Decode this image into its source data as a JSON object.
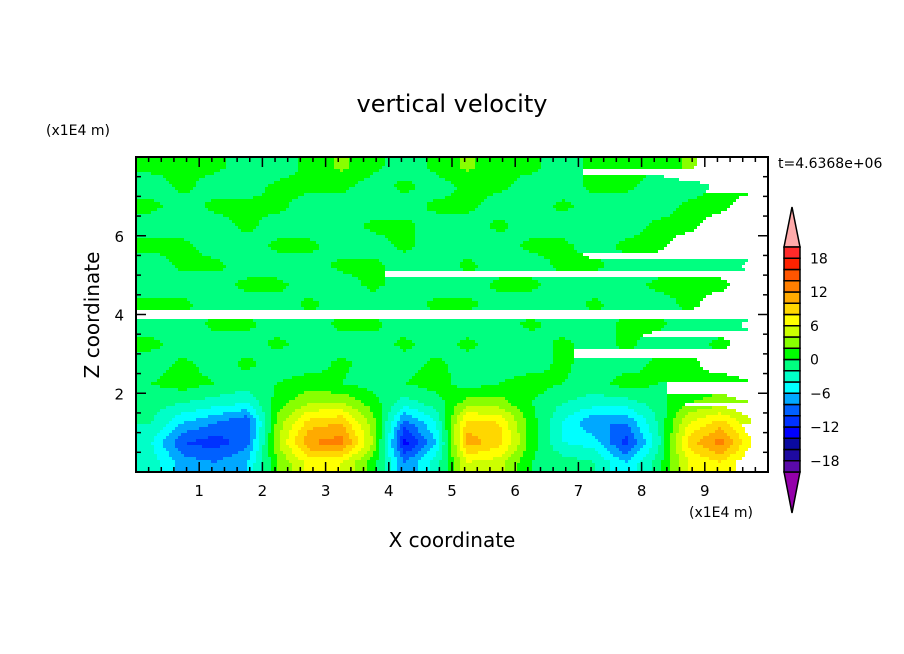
{
  "chart_data": {
    "type": "heatmap",
    "title": "vertical velocity",
    "xlabel": "X coordinate",
    "ylabel": "Z coordinate",
    "x_unit": "(x1E4 m)",
    "y_unit": "(x1E4 m)",
    "time_label": "t=4.6368e+06",
    "xlim": [
      0,
      10
    ],
    "ylim": [
      0,
      8
    ],
    "x_ticks": [
      1,
      2,
      3,
      4,
      5,
      6,
      7,
      8,
      9
    ],
    "y_ticks": [
      2,
      4,
      6
    ],
    "grid": false,
    "colorbar": {
      "levels": [
        -20,
        -18,
        -16,
        -14,
        -12,
        -10,
        -8,
        -6,
        -4,
        -2,
        0,
        2,
        4,
        6,
        8,
        10,
        12,
        14,
        16,
        18,
        20
      ],
      "tick_labels": [
        "-18",
        "-12",
        "-6",
        "0",
        "6",
        "12",
        "18"
      ],
      "tick_values": [
        -18,
        -12,
        -6,
        0,
        6,
        12,
        18
      ],
      "colors": [
        "#5a0aa8",
        "#1e0aa0",
        "#0a0aa0",
        "#0000ff",
        "#0032ff",
        "#0060ff",
        "#00a8ff",
        "#00ffff",
        "#00ffc8",
        "#00ff80",
        "#00ff00",
        "#88ff00",
        "#ccff00",
        "#ffff00",
        "#ffd700",
        "#ffaa00",
        "#ff7f00",
        "#ff5500",
        "#ff2200",
        "#ff2a2a"
      ],
      "over_color": "#ffaaaa",
      "under_color": "#9400aa",
      "extend": "both"
    },
    "x": [
      0.25,
      0.75,
      1.25,
      1.75,
      2.25,
      2.75,
      3.25,
      3.75,
      4.25,
      4.75,
      5.25,
      5.75,
      6.25,
      6.75,
      7.25,
      7.75,
      8.25,
      8.75,
      9.25,
      9.75
    ],
    "z": [
      0.25,
      0.75,
      1.25,
      1.75,
      2.25,
      2.75,
      3.25,
      3.75,
      4.25,
      4.75,
      5.25,
      5.75,
      6.25,
      6.75,
      7.25,
      7.75
    ],
    "values": [
      [
        -3,
        -7,
        -8,
        -6,
        2,
        7,
        6,
        1,
        -8,
        -3,
        6,
        5,
        0,
        -1,
        -2,
        -6,
        -1,
        6,
        8,
        4
      ],
      [
        -4,
        -10,
        -11,
        -9,
        4,
        12,
        13,
        4,
        -13,
        -6,
        11,
        9,
        1,
        -4,
        -5,
        -11,
        -3,
        9,
        13,
        6
      ],
      [
        -2,
        -6,
        -8,
        -10,
        3,
        9,
        10,
        3,
        -9,
        -4,
        9,
        8,
        1,
        -4,
        -8,
        -8,
        -2,
        6,
        9,
        4
      ],
      [
        -1,
        -2,
        -3,
        -4,
        1,
        4,
        4,
        1,
        -3,
        -1,
        3,
        3,
        0,
        -2,
        -3,
        -3,
        -1,
        2,
        3,
        2
      ],
      [
        0,
        1,
        0,
        -1,
        0,
        1,
        0,
        -1,
        0,
        1,
        -1,
        0,
        1,
        0,
        -1,
        1,
        0,
        0,
        1,
        0
      ],
      [
        -1,
        0.5,
        -1,
        0.5,
        -1,
        -1,
        0.5,
        -1,
        -1,
        0.5,
        -1,
        -1,
        -1,
        0.5,
        -1,
        -1,
        0.5,
        0.5,
        -1,
        -1
      ],
      [
        0.5,
        -1,
        -1,
        -1,
        0.5,
        -1,
        -1,
        -1,
        0.5,
        -1,
        0.5,
        -1,
        -1,
        0.5,
        -1,
        0.5,
        -1,
        -1,
        0.5,
        -1
      ],
      [
        -1,
        -1,
        0.5,
        0.5,
        -1,
        -1,
        0.5,
        0.5,
        -1,
        -1,
        -1,
        -1,
        0.5,
        -1,
        -1,
        0.5,
        0.5,
        -1,
        -1,
        0.5
      ],
      [
        0.5,
        0.5,
        -1,
        -1,
        -1,
        0.5,
        -1,
        -1,
        -1,
        0.5,
        0.5,
        -1,
        -1,
        -1,
        0.5,
        -1,
        -1,
        0.5,
        -1,
        -1
      ],
      [
        -1,
        -1,
        -1,
        0.5,
        0.5,
        -1,
        -1,
        0.5,
        -1,
        -1,
        -1,
        0.5,
        0.5,
        -1,
        -1,
        -1,
        0.5,
        0.5,
        0.5,
        -1
      ],
      [
        -1,
        0.5,
        0.5,
        -1,
        -1,
        -1,
        0.5,
        0.5,
        -1,
        -1,
        0.5,
        -1,
        -1,
        0.5,
        0.5,
        -1,
        -1,
        -1,
        -1,
        0.5
      ],
      [
        0.5,
        0.5,
        -1,
        -1,
        0.5,
        0.5,
        -1,
        -1,
        0.5,
        -1,
        -1,
        -1,
        0.5,
        0.5,
        -1,
        0.5,
        0.5,
        -1,
        -1,
        -1
      ],
      [
        -1,
        -1,
        -1,
        0.5,
        -1,
        -1,
        -1,
        0.5,
        0.5,
        -1,
        -1,
        0.5,
        -1,
        -1,
        -1,
        -1,
        0.5,
        0.5,
        -1,
        -1
      ],
      [
        0.5,
        -1,
        0.5,
        0.5,
        0.5,
        -1,
        -1,
        -1,
        -1,
        0.5,
        0.5,
        -1,
        -1,
        0.5,
        -1,
        -1,
        -1,
        0.5,
        0.5,
        -1
      ],
      [
        -1,
        0.5,
        -1,
        -1,
        0.5,
        0.5,
        0.5,
        -1,
        0.5,
        -1,
        0.5,
        0.5,
        -1,
        -1,
        0.5,
        0.5,
        -1,
        -1,
        0.5,
        0.5
      ],
      [
        0.5,
        0.5,
        0.5,
        -1,
        -1,
        0.5,
        2.5,
        0.5,
        -1,
        0.5,
        2.5,
        0.5,
        0.5,
        -1,
        0.5,
        0.5,
        0.5,
        2.5,
        0.5,
        0.5
      ]
    ]
  }
}
